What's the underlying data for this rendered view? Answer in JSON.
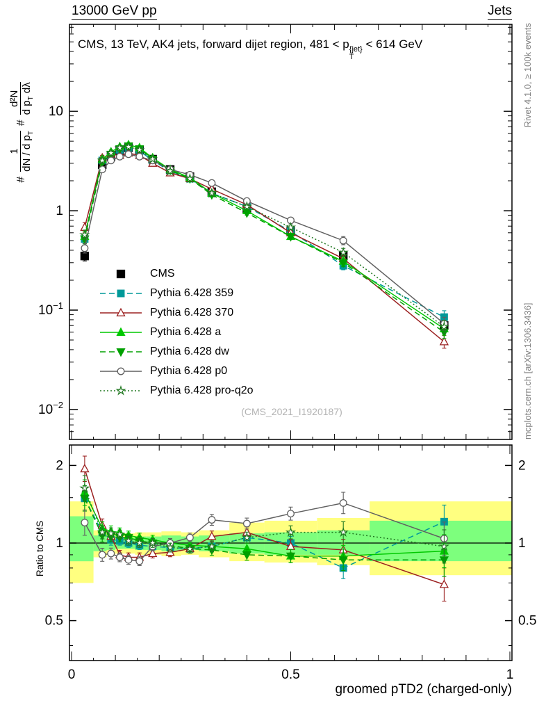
{
  "header": {
    "left": "13000 GeV pp",
    "right": "Jets"
  },
  "plot": {
    "title": {
      "pre": "CMS, 13 TeV, AK4 jets, forward dijet region, 481 < p",
      "sup": "{jet}",
      "sub": "T",
      "post": " < 614 GeV"
    },
    "watermark": "(CMS_2021_I1920187)",
    "ylabel": {
      "hash1": "#",
      "frac1_num": "1",
      "frac1_den_pre": "dN / d p",
      "frac1_den_sub": "T",
      "hash2": "#",
      "frac2_num": "d²N",
      "frac2_den_pre": "d p",
      "frac2_den_sub": "T",
      "frac2_den_post": " dλ"
    },
    "ratio_ylabel": "Ratio to CMS",
    "xlabel": "groomed pTD2 (charged-only)"
  },
  "sidebar_right": {
    "top": "Rivet 4.1.0, ≥ 100k events",
    "bottom": "mcplots.cern.ch [arXiv:1306.3436]"
  },
  "chart_data": {
    "type": "line",
    "title": "CMS, 13 TeV, AK4 jets, forward dijet region, 481 < pT{jet} < 614 GeV",
    "xlabel": "groomed pTD2 (charged-only)",
    "xlim": [
      0,
      1
    ],
    "xticks": [
      {
        "v": 0,
        "label": "0"
      },
      {
        "v": 0.5,
        "label": "0.5"
      },
      {
        "v": 1,
        "label": "1"
      }
    ],
    "x": [
      0.03,
      0.07,
      0.09,
      0.11,
      0.13,
      0.155,
      0.185,
      0.225,
      0.27,
      0.32,
      0.4,
      0.5,
      0.62,
      0.85
    ],
    "rel_err": [
      0.12,
      0.06,
      0.05,
      0.04,
      0.04,
      0.04,
      0.04,
      0.04,
      0.04,
      0.05,
      0.05,
      0.06,
      0.1,
      0.16
    ],
    "main": {
      "yscale": "log",
      "ylim": [
        0.005,
        75
      ],
      "yticks": [
        {
          "v": 10,
          "base": "10",
          "exp": ""
        },
        {
          "v": 1,
          "base": "1",
          "exp": ""
        },
        {
          "v": 0.1,
          "base": "10",
          "exp": "−1"
        },
        {
          "v": 0.01,
          "base": "10",
          "exp": "−2"
        }
      ],
      "series": [
        {
          "name": "CMS",
          "color": "#000000",
          "marker": "square",
          "filled": true,
          "line": "none",
          "is_ref": true,
          "y_main": [
            0.35,
            2.9,
            3.5,
            4.0,
            4.3,
            4.1,
            3.3,
            2.6,
            2.2,
            1.55,
            1.05,
            0.62,
            0.35,
            0.07
          ]
        },
        {
          "name": "Pythia 6.428 359",
          "color": "#009999",
          "marker": "square",
          "filled": true,
          "line": "dashed",
          "y_main": [
            0.52,
            3.2,
            3.6,
            4.1,
            4.3,
            4.0,
            3.2,
            2.5,
            2.1,
            1.5,
            1.1,
            0.62,
            0.28,
            0.085
          ],
          "y_ratio": [
            1.49,
            1.1,
            1.03,
            1.02,
            1.0,
            0.98,
            0.97,
            0.96,
            0.95,
            0.97,
            1.05,
            1.0,
            0.8,
            1.21
          ]
        },
        {
          "name": "Pythia 6.428 370",
          "color": "#9b2020",
          "marker": "triangle",
          "filled": false,
          "line": "solid",
          "y_main": [
            0.68,
            3.4,
            3.7,
            3.6,
            3.8,
            3.6,
            3.0,
            2.4,
            2.1,
            1.65,
            1.15,
            0.6,
            0.33,
            0.048
          ],
          "y_ratio": [
            1.94,
            1.17,
            1.06,
            0.9,
            0.88,
            0.88,
            0.91,
            0.92,
            0.95,
            1.06,
            1.1,
            0.97,
            0.94,
            0.69
          ]
        },
        {
          "name": "Pythia 6.428 a",
          "color": "#00c800",
          "marker": "triangle",
          "filled": true,
          "line": "solid",
          "y_main": [
            0.55,
            3.3,
            3.9,
            4.4,
            4.6,
            4.3,
            3.4,
            2.6,
            2.15,
            1.5,
            1.0,
            0.55,
            0.31,
            0.065
          ],
          "y_ratio": [
            1.57,
            1.14,
            1.11,
            1.1,
            1.07,
            1.05,
            1.03,
            1.0,
            0.98,
            0.97,
            0.95,
            0.89,
            0.89,
            0.93
          ]
        },
        {
          "name": "Pythia 6.428 dw",
          "color": "#00a000",
          "marker": "triangle-down",
          "filled": true,
          "line": "dashed",
          "y_main": [
            0.52,
            3.1,
            3.7,
            4.2,
            4.5,
            4.2,
            3.3,
            2.55,
            2.1,
            1.45,
            0.95,
            0.55,
            0.3,
            0.06
          ],
          "y_ratio": [
            1.49,
            1.07,
            1.06,
            1.05,
            1.05,
            1.02,
            1.0,
            0.98,
            0.95,
            0.94,
            0.9,
            0.89,
            0.86,
            0.86
          ]
        },
        {
          "name": "Pythia 6.428 p0",
          "color": "#606060",
          "marker": "circle",
          "filled": false,
          "line": "solid",
          "y_main": [
            0.42,
            2.6,
            3.2,
            3.5,
            3.7,
            3.5,
            3.2,
            2.6,
            2.3,
            1.9,
            1.25,
            0.8,
            0.5,
            0.073
          ],
          "y_ratio": [
            1.2,
            0.9,
            0.91,
            0.88,
            0.86,
            0.85,
            0.97,
            1.0,
            1.05,
            1.23,
            1.19,
            1.3,
            1.43,
            1.04
          ]
        },
        {
          "name": "Pythia 6.428 pro-q2o",
          "color": "#217821",
          "marker": "star",
          "filled": false,
          "line": "dotted",
          "y_main": [
            0.57,
            3.2,
            3.8,
            4.3,
            4.4,
            4.1,
            3.3,
            2.5,
            2.1,
            1.5,
            1.1,
            0.68,
            0.38,
            0.068
          ],
          "y_ratio": [
            1.63,
            1.1,
            1.09,
            1.08,
            1.02,
            1.0,
            1.0,
            0.96,
            0.95,
            0.97,
            1.05,
            1.1,
            1.1,
            0.97
          ]
        }
      ]
    },
    "ratio": {
      "yscale": "log",
      "ylim": [
        0.35,
        2.4
      ],
      "yticks": [
        {
          "v": 2,
          "label": "2"
        },
        {
          "v": 1,
          "label": "1"
        },
        {
          "v": 0.5,
          "label": "0.5"
        }
      ],
      "yticks_minor": [
        0.4,
        0.6,
        0.7,
        0.8,
        0.9,
        1.5
      ],
      "band_colors": {
        "yellow": "#ffff80",
        "green": "#7dff7d"
      },
      "bands": {
        "edges": [
          0,
          0.05,
          0.08,
          0.1,
          0.12,
          0.145,
          0.17,
          0.205,
          0.25,
          0.29,
          0.36,
          0.44,
          0.56,
          0.68,
          1.0
        ],
        "yellow_lo": [
          0.7,
          0.88,
          0.9,
          0.91,
          0.91,
          0.9,
          0.9,
          0.89,
          0.9,
          0.88,
          0.85,
          0.84,
          0.82,
          0.75
        ],
        "yellow_hi": [
          1.45,
          1.12,
          1.1,
          1.09,
          1.09,
          1.1,
          1.1,
          1.11,
          1.1,
          1.12,
          1.2,
          1.22,
          1.25,
          1.45
        ],
        "green_lo": [
          0.85,
          0.93,
          0.94,
          0.95,
          0.95,
          0.94,
          0.94,
          0.93,
          0.94,
          0.93,
          0.91,
          0.9,
          0.9,
          0.85
        ],
        "green_hi": [
          1.27,
          1.07,
          1.06,
          1.05,
          1.05,
          1.06,
          1.06,
          1.07,
          1.06,
          1.07,
          1.09,
          1.1,
          1.12,
          1.22
        ]
      }
    }
  }
}
